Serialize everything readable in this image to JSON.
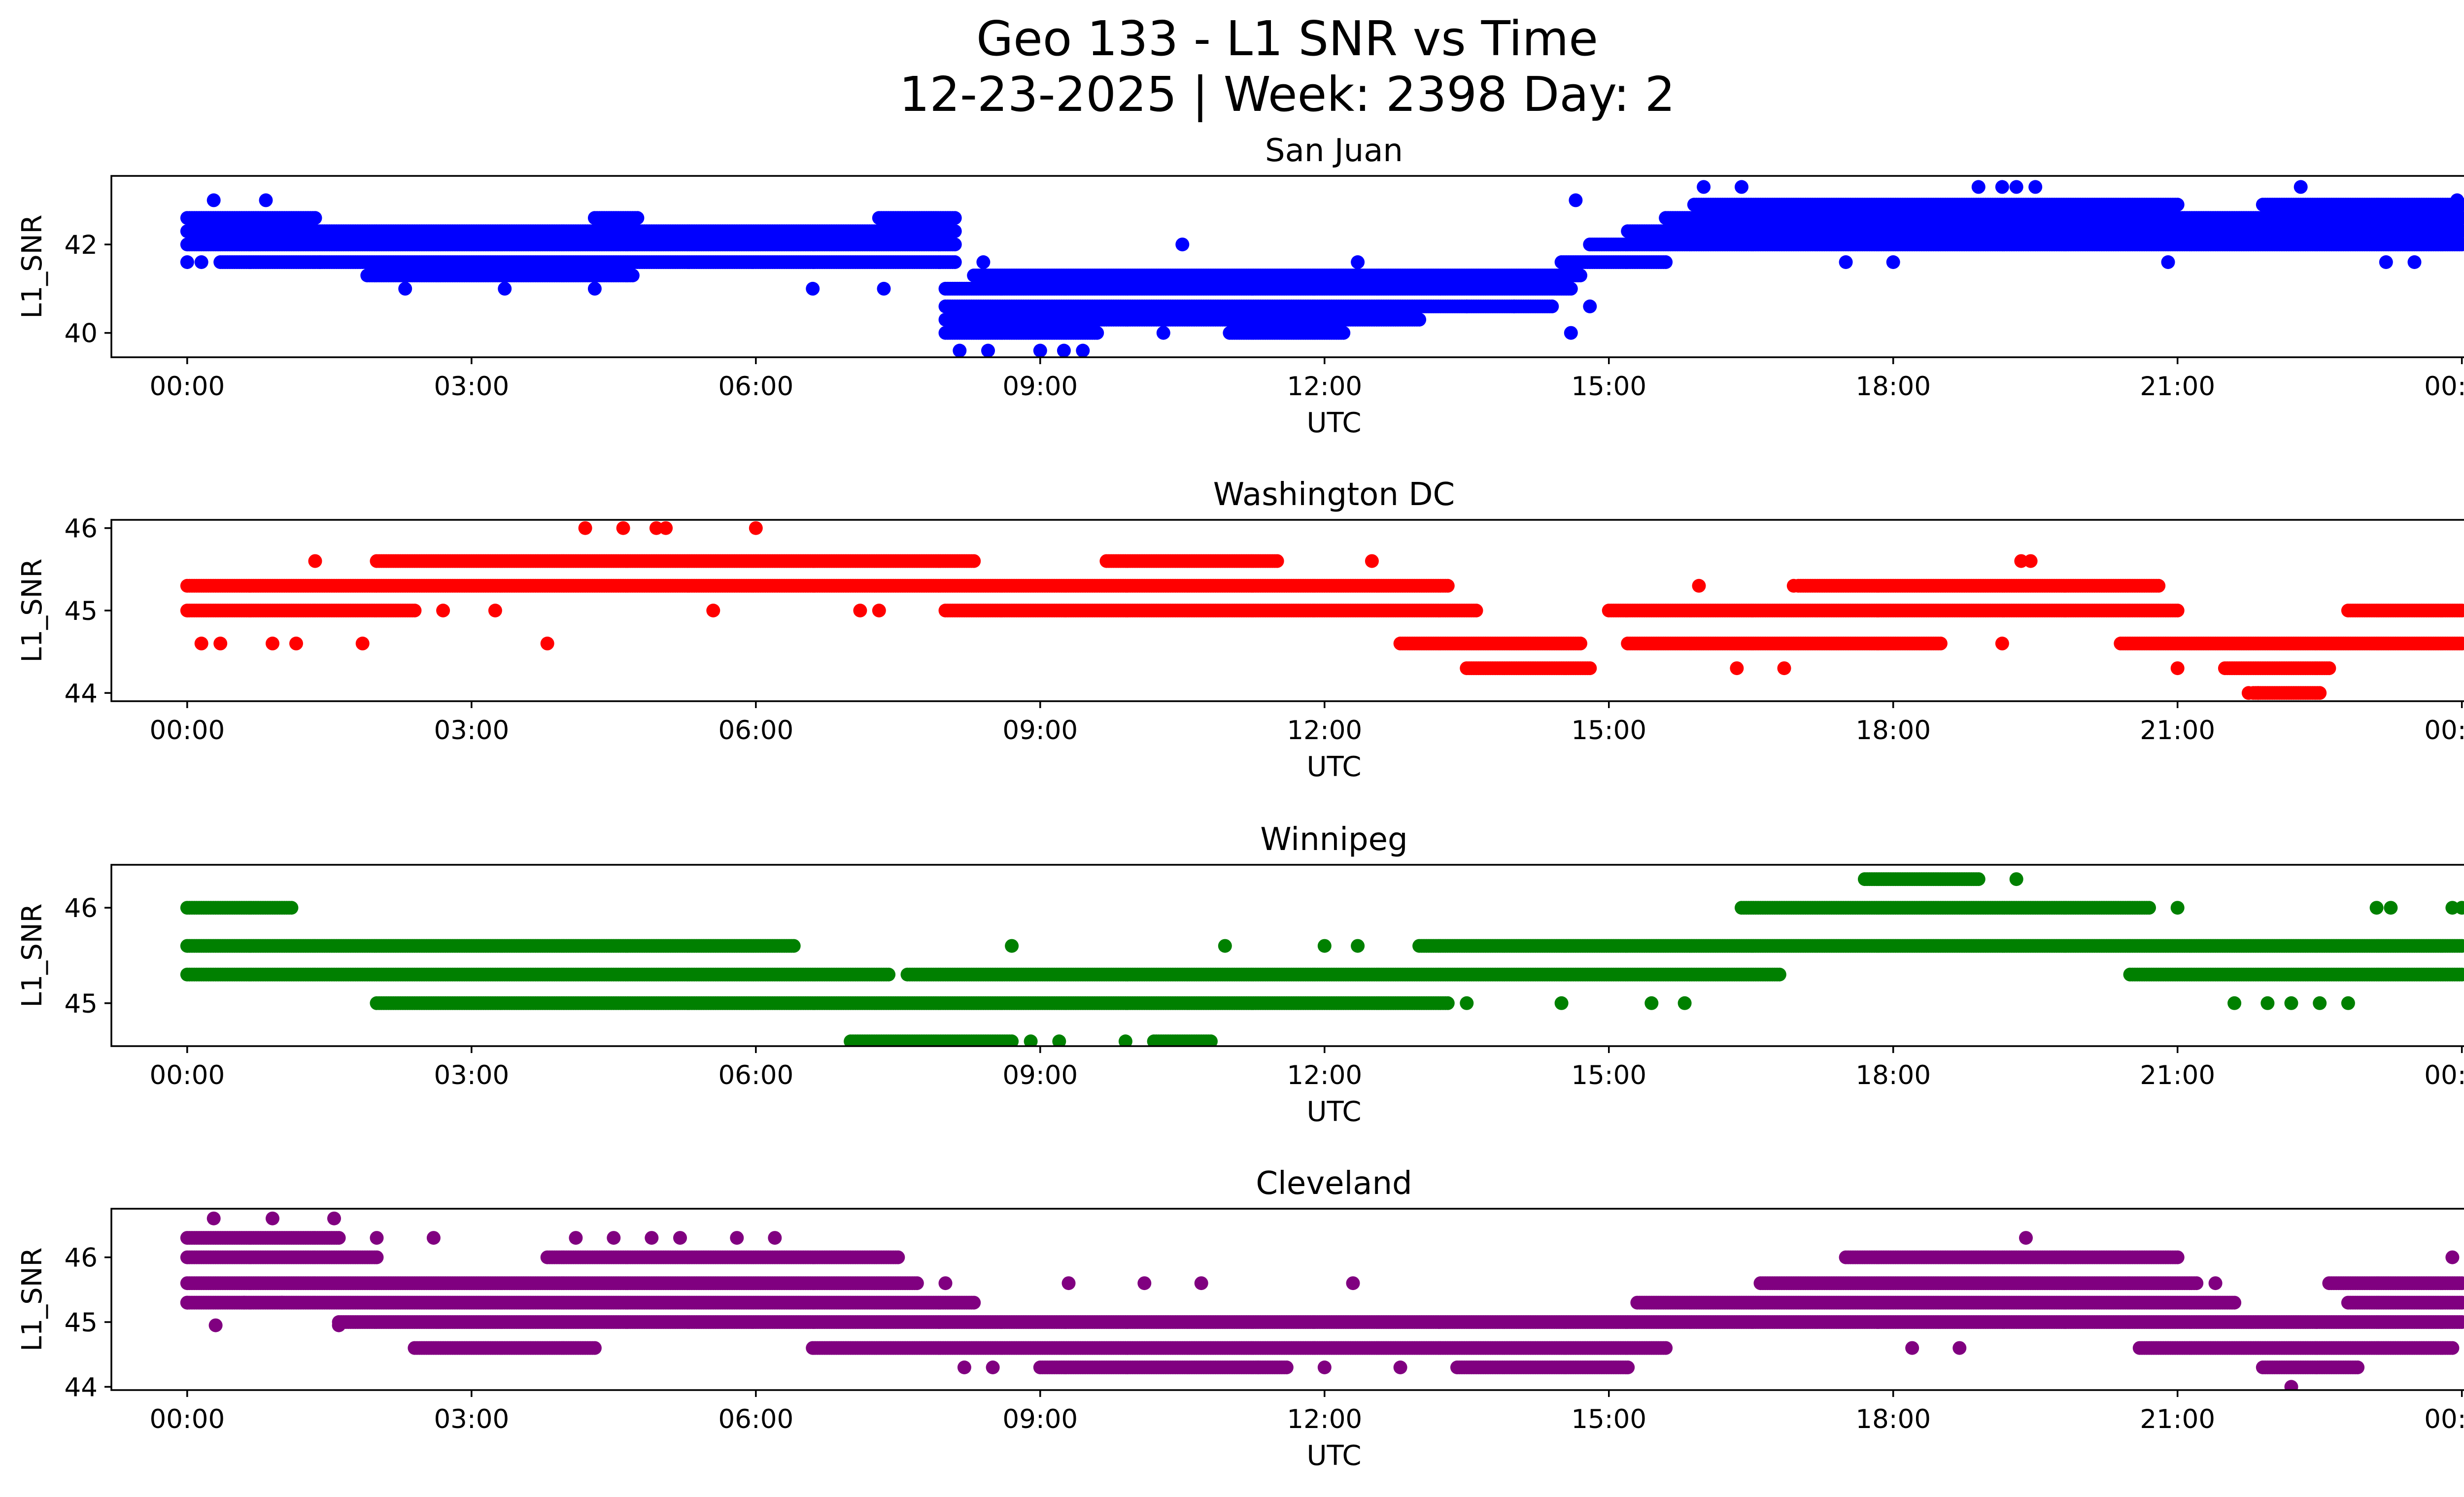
{
  "chart_data": {
    "type": "scatter",
    "title": "Geo 133 - L1 SNR vs Time",
    "subtitle": "12-23-2025 | Week: 2398 Day: 2",
    "xlabel": "UTC",
    "ylabel": "L1_SNR",
    "x_unit": "hours UTC",
    "xlim": [
      -0.8,
      25.0
    ],
    "x_ticks": [
      0,
      3,
      6,
      9,
      12,
      15,
      18,
      21,
      24
    ],
    "x_tick_labels": [
      "00:00",
      "03:00",
      "06:00",
      "09:00",
      "12:00",
      "15:00",
      "18:00",
      "21:00",
      "00:00"
    ],
    "panels": [
      {
        "title": "San Juan",
        "color": "#0000ff",
        "ylim": [
          39.45,
          43.55
        ],
        "y_ticks": [
          40,
          42
        ],
        "y_tick_labels": [
          "40",
          "42"
        ],
        "bands": [
          {
            "y": 42.6,
            "segments": [
              [
                0.0,
                1.35
              ],
              [
                4.3,
                4.75
              ],
              [
                7.3,
                8.1
              ],
              [
                15.6,
                24.0
              ]
            ]
          },
          {
            "y": 42.3,
            "segments": [
              [
                0.0,
                8.1
              ],
              [
                15.2,
                24.0
              ]
            ]
          },
          {
            "y": 42.0,
            "segments": [
              [
                0.0,
                8.1
              ],
              [
                14.8,
                24.0
              ]
            ]
          },
          {
            "y": 41.6,
            "segments": [
              [
                0.35,
                8.1
              ],
              [
                14.5,
                15.6
              ]
            ]
          },
          {
            "y": 41.3,
            "segments": [
              [
                1.9,
                4.7
              ],
              [
                8.3,
                14.7
              ]
            ]
          },
          {
            "y": 41.0,
            "segments": [
              [
                8.0,
                14.6
              ]
            ]
          },
          {
            "y": 40.6,
            "segments": [
              [
                8.0,
                14.4
              ]
            ]
          },
          {
            "y": 40.3,
            "segments": [
              [
                8.0,
                13.0
              ]
            ]
          },
          {
            "y": 40.0,
            "segments": [
              [
                8.0,
                9.6
              ],
              [
                11.0,
                12.2
              ]
            ]
          },
          {
            "y": 42.9,
            "segments": [
              [
                15.9,
                21.0
              ],
              [
                21.9,
                24.0
              ]
            ]
          }
        ],
        "sparse": [
          [
            0.0,
            41.6
          ],
          [
            0.15,
            41.6
          ],
          [
            0.28,
            43.0
          ],
          [
            0.83,
            43.0
          ],
          [
            1.4,
            41.6
          ],
          [
            2.3,
            41.0
          ],
          [
            3.35,
            41.0
          ],
          [
            4.3,
            41.0
          ],
          [
            6.6,
            41.0
          ],
          [
            7.35,
            41.0
          ],
          [
            8.15,
            39.6
          ],
          [
            8.45,
            39.6
          ],
          [
            9.0,
            39.6
          ],
          [
            9.25,
            39.6
          ],
          [
            9.45,
            39.6
          ],
          [
            8.4,
            41.6
          ],
          [
            10.5,
            42.0
          ],
          [
            10.3,
            40.0
          ],
          [
            12.35,
            41.6
          ],
          [
            13.5,
            40.6
          ],
          [
            14.0,
            40.6
          ],
          [
            14.6,
            40.0
          ],
          [
            14.65,
            43.0
          ],
          [
            14.8,
            40.6
          ],
          [
            16.0,
            43.3
          ],
          [
            16.4,
            43.3
          ],
          [
            17.5,
            41.6
          ],
          [
            18.0,
            41.6
          ],
          [
            18.9,
            43.3
          ],
          [
            19.15,
            43.3
          ],
          [
            19.3,
            43.3
          ],
          [
            19.5,
            43.3
          ],
          [
            20.9,
            41.6
          ],
          [
            22.3,
            43.3
          ],
          [
            23.2,
            41.6
          ],
          [
            23.5,
            41.6
          ],
          [
            23.95,
            43.0
          ]
        ]
      },
      {
        "title": "Washington DC",
        "color": "#ff0000",
        "ylim": [
          43.9,
          46.1
        ],
        "y_ticks": [
          44,
          45,
          46
        ],
        "y_tick_labels": [
          "44",
          "45",
          "46"
        ],
        "bands": [
          {
            "y": 45.6,
            "segments": [
              [
                2.0,
                8.3
              ],
              [
                9.7,
                11.5
              ]
            ]
          },
          {
            "y": 45.3,
            "segments": [
              [
                0.0,
                13.3
              ],
              [
                17.0,
                20.8
              ]
            ]
          },
          {
            "y": 45.0,
            "segments": [
              [
                0.0,
                2.4
              ],
              [
                8.0,
                13.6
              ],
              [
                15.0,
                21.0
              ],
              [
                22.8,
                24.0
              ]
            ]
          },
          {
            "y": 44.6,
            "segments": [
              [
                12.8,
                14.7
              ],
              [
                15.2,
                18.5
              ],
              [
                20.4,
                24.0
              ]
            ]
          },
          {
            "y": 44.3,
            "segments": [
              [
                13.5,
                14.8
              ],
              [
                21.5,
                22.6
              ]
            ]
          },
          {
            "y": 44.0,
            "segments": [
              [
                21.8,
                22.5
              ]
            ]
          }
        ],
        "sparse": [
          [
            0.15,
            44.6
          ],
          [
            0.35,
            44.6
          ],
          [
            0.9,
            44.6
          ],
          [
            1.15,
            44.6
          ],
          [
            1.35,
            45.6
          ],
          [
            1.85,
            44.6
          ],
          [
            2.7,
            45.0
          ],
          [
            3.25,
            45.0
          ],
          [
            3.8,
            44.6
          ],
          [
            4.2,
            46.0
          ],
          [
            4.6,
            46.0
          ],
          [
            4.95,
            46.0
          ],
          [
            5.05,
            46.0
          ],
          [
            5.55,
            45.0
          ],
          [
            6.0,
            46.0
          ],
          [
            7.1,
            45.0
          ],
          [
            7.3,
            45.0
          ],
          [
            12.5,
            45.6
          ],
          [
            15.95,
            45.3
          ],
          [
            16.35,
            44.3
          ],
          [
            16.85,
            44.3
          ],
          [
            16.95,
            45.3
          ],
          [
            19.35,
            45.6
          ],
          [
            19.45,
            45.6
          ],
          [
            19.15,
            44.6
          ],
          [
            21.0,
            44.3
          ],
          [
            21.75,
            44.0
          ],
          [
            21.85,
            44.0
          ]
        ]
      },
      {
        "title": "Winnipeg",
        "color": "#008000",
        "ylim": [
          44.55,
          46.45
        ],
        "y_ticks": [
          45,
          46
        ],
        "y_tick_labels": [
          "45",
          "46"
        ],
        "bands": [
          {
            "y": 46.0,
            "segments": [
              [
                0.0,
                1.1
              ],
              [
                16.4,
                20.7
              ]
            ]
          },
          {
            "y": 45.6,
            "segments": [
              [
                0.0,
                6.4
              ],
              [
                13.0,
                24.0
              ]
            ]
          },
          {
            "y": 45.3,
            "segments": [
              [
                0.0,
                7.4
              ],
              [
                7.6,
                16.8
              ],
              [
                20.5,
                24.0
              ]
            ]
          },
          {
            "y": 45.0,
            "segments": [
              [
                2.0,
                13.3
              ]
            ]
          },
          {
            "y": 44.6,
            "segments": [
              [
                7.0,
                8.7
              ],
              [
                10.2,
                10.8
              ]
            ]
          },
          {
            "y": 46.3,
            "segments": [
              [
                17.7,
                18.9
              ]
            ]
          }
        ],
        "sparse": [
          [
            8.7,
            45.6
          ],
          [
            10.95,
            45.6
          ],
          [
            12.0,
            45.6
          ],
          [
            12.35,
            45.6
          ],
          [
            13.5,
            45.0
          ],
          [
            14.5,
            45.0
          ],
          [
            15.45,
            45.0
          ],
          [
            15.8,
            45.0
          ],
          [
            8.9,
            44.6
          ],
          [
            9.2,
            44.6
          ],
          [
            9.9,
            44.6
          ],
          [
            19.3,
            46.3
          ],
          [
            21.0,
            46.0
          ],
          [
            21.6,
            45.0
          ],
          [
            21.95,
            45.0
          ],
          [
            22.2,
            45.0
          ],
          [
            22.5,
            45.0
          ],
          [
            22.8,
            45.0
          ],
          [
            23.1,
            46.0
          ],
          [
            23.25,
            46.0
          ],
          [
            23.9,
            46.0
          ],
          [
            24.0,
            46.0
          ]
        ]
      },
      {
        "title": "Cleveland",
        "color": "#800080",
        "ylim": [
          43.95,
          46.75
        ],
        "y_ticks": [
          44,
          45,
          46
        ],
        "y_tick_labels": [
          "44",
          "45",
          "46"
        ],
        "bands": [
          {
            "y": 46.3,
            "segments": [
              [
                0.0,
                1.6
              ]
            ]
          },
          {
            "y": 46.0,
            "segments": [
              [
                0.0,
                2.0
              ],
              [
                3.8,
                7.5
              ],
              [
                17.5,
                21.0
              ]
            ]
          },
          {
            "y": 45.6,
            "segments": [
              [
                0.0,
                7.7
              ],
              [
                16.6,
                21.2
              ],
              [
                22.6,
                24.0
              ]
            ]
          },
          {
            "y": 45.3,
            "segments": [
              [
                0.0,
                8.3
              ],
              [
                15.3,
                21.6
              ],
              [
                22.8,
                24.0
              ]
            ]
          },
          {
            "y": 45.0,
            "segments": [
              [
                1.6,
                24.0
              ]
            ]
          },
          {
            "y": 44.6,
            "segments": [
              [
                2.4,
                4.3
              ],
              [
                6.6,
                15.6
              ],
              [
                20.6,
                23.9
              ]
            ]
          },
          {
            "y": 44.3,
            "segments": [
              [
                9.0,
                11.6
              ],
              [
                13.4,
                15.2
              ],
              [
                21.9,
                22.9
              ]
            ]
          }
        ],
        "sparse": [
          [
            0.28,
            46.6
          ],
          [
            0.9,
            46.6
          ],
          [
            1.55,
            46.6
          ],
          [
            0.0,
            45.3
          ],
          [
            0.3,
            44.95
          ],
          [
            0.6,
            45.3
          ],
          [
            1.0,
            45.3
          ],
          [
            1.6,
            44.95
          ],
          [
            2.0,
            46.3
          ],
          [
            2.6,
            46.3
          ],
          [
            4.1,
            46.3
          ],
          [
            4.5,
            46.3
          ],
          [
            4.9,
            46.3
          ],
          [
            5.2,
            46.3
          ],
          [
            5.8,
            46.3
          ],
          [
            6.2,
            46.3
          ],
          [
            8.2,
            44.3
          ],
          [
            8.5,
            44.3
          ],
          [
            8.0,
            45.6
          ],
          [
            9.3,
            45.6
          ],
          [
            10.1,
            45.6
          ],
          [
            10.7,
            45.6
          ],
          [
            11.3,
            44.3
          ],
          [
            12.0,
            44.3
          ],
          [
            12.3,
            45.6
          ],
          [
            12.8,
            44.3
          ],
          [
            18.2,
            44.6
          ],
          [
            18.7,
            44.6
          ],
          [
            19.4,
            46.3
          ],
          [
            21.4,
            45.6
          ],
          [
            22.2,
            44.0
          ],
          [
            23.9,
            46.0
          ]
        ]
      }
    ]
  }
}
